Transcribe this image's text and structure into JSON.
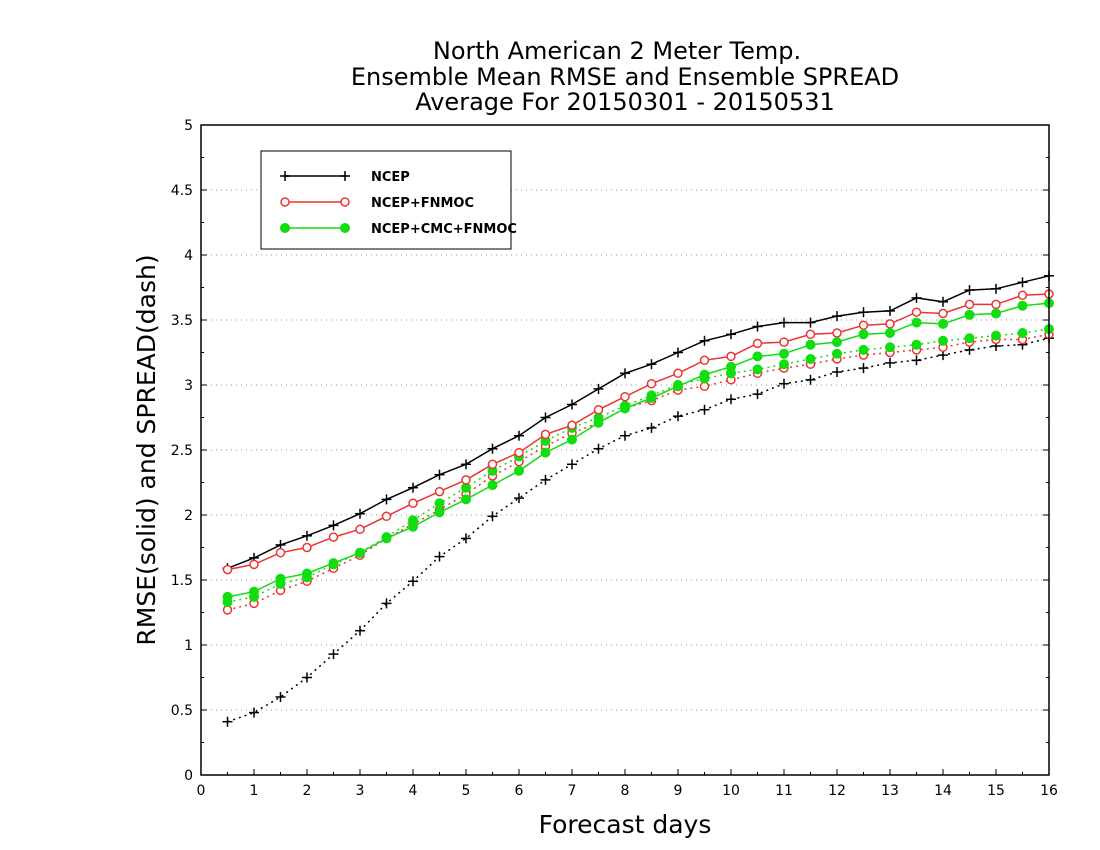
{
  "chart_data": {
    "type": "line",
    "title_lines": [
      "North American 2 Meter Temp.",
      "Ensemble Mean RMSE and Ensemble SPREAD",
      "Average For 20150301 - 20150531"
    ],
    "xlabel": "Forecast days",
    "ylabel": "RMSE(solid) and SPREAD(dash)",
    "xlim": [
      0,
      16
    ],
    "ylim": [
      0,
      5
    ],
    "xticks": [
      "0",
      "1",
      "2",
      "3",
      "4",
      "5",
      "6",
      "7",
      "8",
      "9",
      "10",
      "11",
      "12",
      "13",
      "14",
      "15",
      "16"
    ],
    "yticks": [
      "0",
      "0.5",
      "1",
      "1.5",
      "2",
      "2.5",
      "3",
      "3.5",
      "4",
      "4.5",
      "5"
    ],
    "grid": "horizontal dotted",
    "legend_position": "top-left",
    "x": [
      0.5,
      1,
      1.5,
      2,
      2.5,
      3,
      3.5,
      4,
      4.5,
      5,
      5.5,
      6,
      6.5,
      7,
      7.5,
      8,
      8.5,
      9,
      9.5,
      10,
      10.5,
      11,
      11.5,
      12,
      12.5,
      13,
      13.5,
      14,
      14.5,
      15,
      15.5,
      16
    ],
    "series": [
      {
        "name": "NCEP",
        "color": "#000000",
        "marker": "plus",
        "rmse": [
          1.59,
          1.67,
          1.77,
          1.84,
          1.92,
          2.01,
          2.12,
          2.21,
          2.31,
          2.39,
          2.51,
          2.61,
          2.75,
          2.85,
          2.97,
          3.09,
          3.16,
          3.25,
          3.34,
          3.39,
          3.45,
          3.48,
          3.48,
          3.53,
          3.56,
          3.57,
          3.67,
          3.64,
          3.73,
          3.74,
          3.79,
          3.84
        ],
        "spread": [
          0.41,
          0.48,
          0.6,
          0.75,
          0.93,
          1.11,
          1.32,
          1.49,
          1.68,
          1.82,
          1.99,
          2.13,
          2.27,
          2.39,
          2.51,
          2.61,
          2.67,
          2.76,
          2.81,
          2.89,
          2.93,
          3.01,
          3.04,
          3.1,
          3.13,
          3.17,
          3.19,
          3.23,
          3.27,
          3.3,
          3.31,
          3.36
        ]
      },
      {
        "name": "NCEP+FNMOC",
        "color": "#ee3333",
        "marker": "open-circle",
        "rmse": [
          1.58,
          1.62,
          1.71,
          1.75,
          1.83,
          1.89,
          1.99,
          2.09,
          2.18,
          2.27,
          2.39,
          2.48,
          2.62,
          2.69,
          2.81,
          2.91,
          3.01,
          3.09,
          3.19,
          3.22,
          3.32,
          3.33,
          3.39,
          3.4,
          3.46,
          3.47,
          3.56,
          3.55,
          3.62,
          3.62,
          3.69,
          3.7
        ],
        "spread": [
          1.27,
          1.32,
          1.42,
          1.49,
          1.59,
          1.69,
          1.82,
          1.93,
          2.04,
          2.16,
          2.3,
          2.41,
          2.53,
          2.63,
          2.71,
          2.82,
          2.88,
          2.96,
          2.99,
          3.04,
          3.09,
          3.13,
          3.16,
          3.2,
          3.23,
          3.25,
          3.27,
          3.29,
          3.33,
          3.35,
          3.35,
          3.39
        ]
      },
      {
        "name": "NCEP+CMC+FNMOC",
        "color": "#11dd11",
        "marker": "filled-circle",
        "rmse": [
          1.37,
          1.41,
          1.51,
          1.55,
          1.63,
          1.71,
          1.82,
          1.91,
          2.02,
          2.12,
          2.23,
          2.34,
          2.48,
          2.58,
          2.71,
          2.82,
          2.9,
          2.99,
          3.08,
          3.14,
          3.22,
          3.24,
          3.31,
          3.33,
          3.39,
          3.4,
          3.48,
          3.47,
          3.54,
          3.55,
          3.61,
          3.63
        ],
        "spread": [
          1.33,
          1.37,
          1.47,
          1.52,
          1.62,
          1.71,
          1.83,
          1.96,
          2.09,
          2.21,
          2.34,
          2.45,
          2.57,
          2.67,
          2.75,
          2.84,
          2.92,
          3.0,
          3.05,
          3.09,
          3.12,
          3.16,
          3.2,
          3.24,
          3.27,
          3.29,
          3.31,
          3.34,
          3.36,
          3.38,
          3.4,
          3.43
        ]
      }
    ]
  }
}
